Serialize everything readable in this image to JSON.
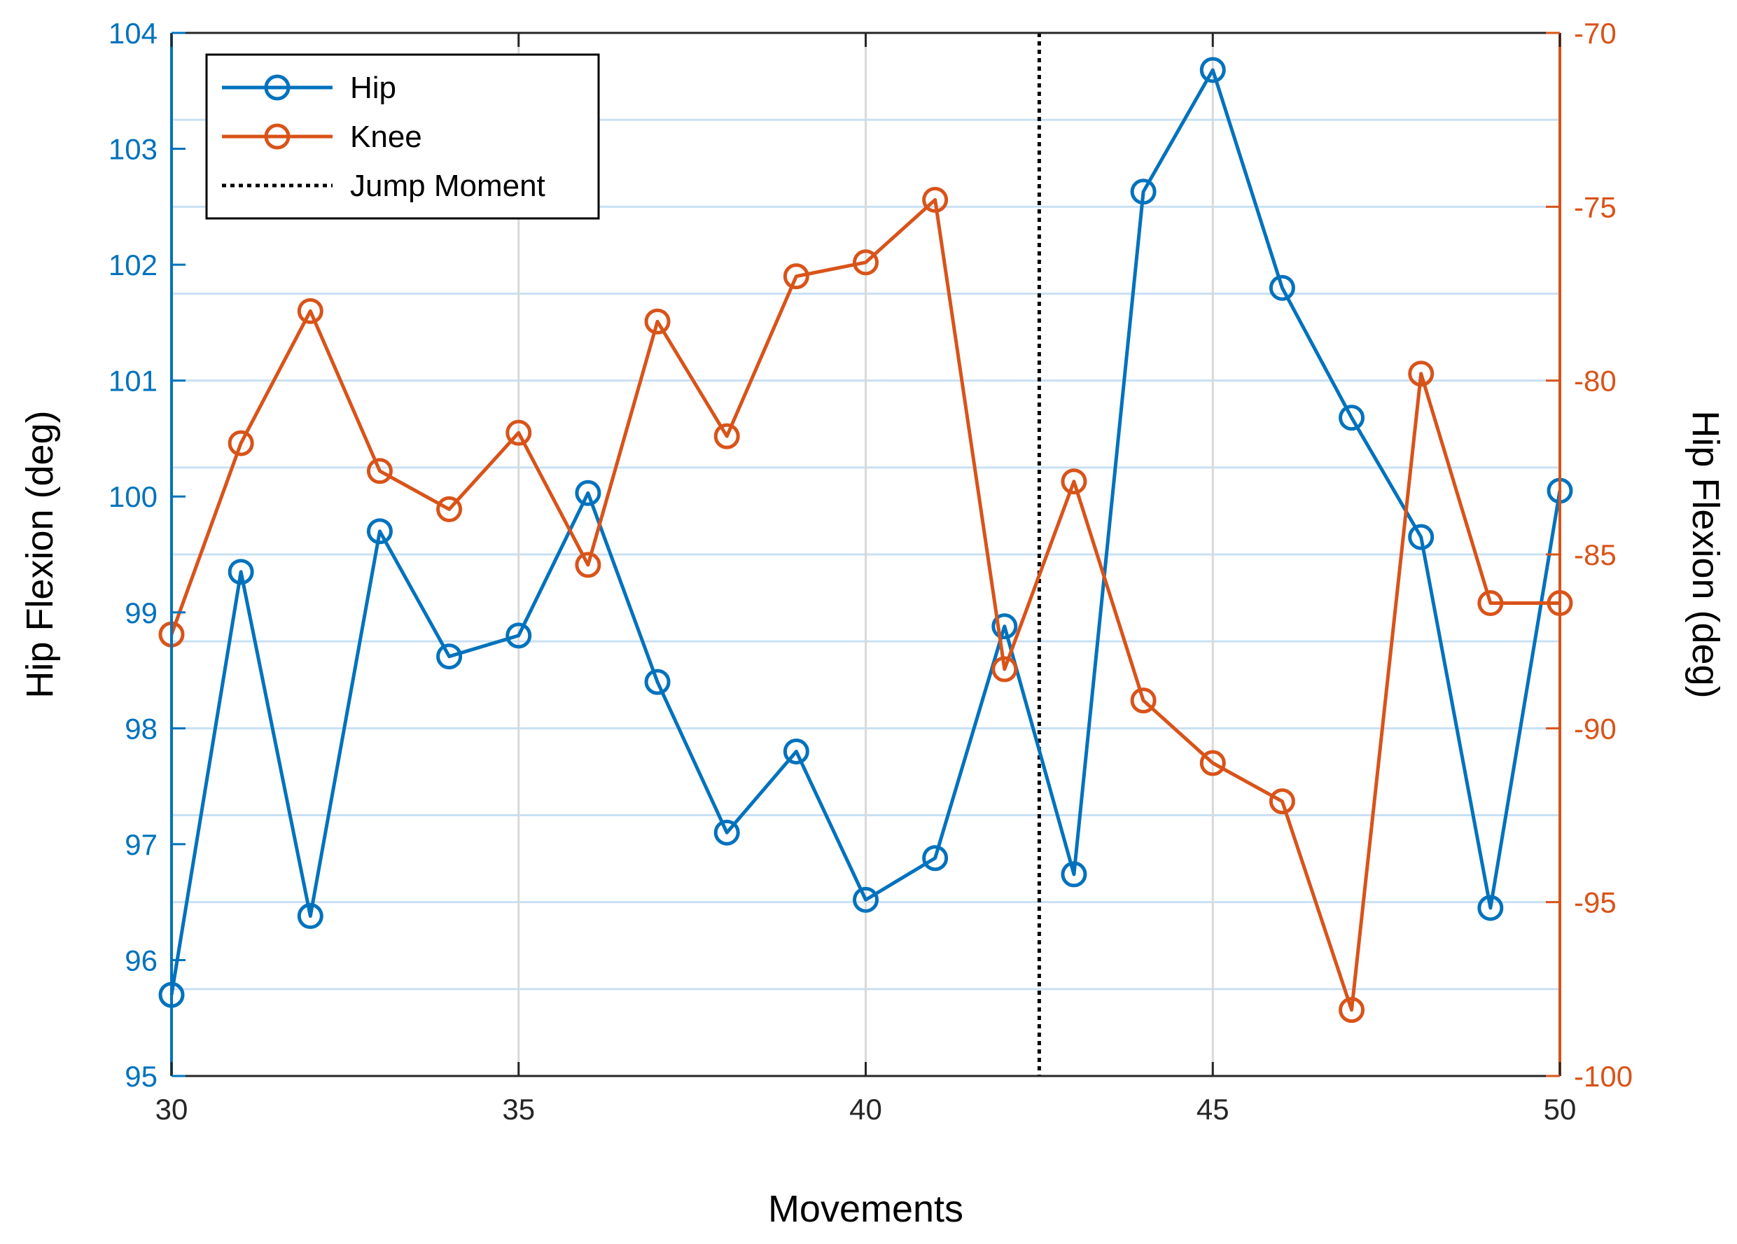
{
  "colors": {
    "left_axis": "#0072BD",
    "right_axis": "#D95319",
    "hip": "#0072BD",
    "knee": "#D95319",
    "jump": "#000000",
    "grid_major": "#d9d9d9",
    "grid_minor": "#c9e0f3"
  },
  "chart_data": {
    "type": "line",
    "title": "",
    "xlabel": "Movements",
    "ylabel_left": "Hip Flexion (deg)",
    "ylabel_right": "Hip Flexion (deg)",
    "xlim": [
      30,
      50
    ],
    "ylim_left": [
      95,
      104
    ],
    "ylim_right": [
      -100,
      -70
    ],
    "x_ticks": [
      30,
      35,
      40,
      45,
      50
    ],
    "y_ticks_left": [
      95,
      96,
      97,
      98,
      99,
      100,
      101,
      102,
      103,
      104
    ],
    "y_ticks_right": [
      -100,
      -95,
      -90,
      -85,
      -80,
      -75,
      -70
    ],
    "grid": true,
    "legend_position": "top-left",
    "x": [
      30,
      31,
      32,
      33,
      34,
      35,
      36,
      37,
      38,
      39,
      40,
      41,
      42,
      43,
      44,
      45,
      46,
      47,
      48,
      49,
      50
    ],
    "series": [
      {
        "name": "Hip",
        "axis": "left",
        "marker": "circle",
        "values": [
          95.7,
          99.35,
          96.38,
          99.7,
          98.62,
          98.8,
          100.03,
          98.4,
          97.1,
          97.8,
          96.52,
          96.88,
          98.88,
          96.74,
          102.63,
          103.68,
          101.8,
          100.68,
          99.65,
          96.45,
          100.05
        ]
      },
      {
        "name": "Knee",
        "axis": "right",
        "marker": "circle",
        "values": [
          -87.3,
          -81.8,
          -78.0,
          -82.6,
          -83.7,
          -81.5,
          -85.3,
          -78.3,
          -81.6,
          -77.0,
          -76.6,
          -74.8,
          -88.3,
          -82.9,
          -89.2,
          -91.0,
          -92.1,
          -98.1,
          -79.8,
          -86.4,
          -86.4
        ]
      }
    ],
    "vertical_lines": [
      {
        "name": "Jump Moment",
        "x": 42.5,
        "style": "dotted"
      }
    ]
  }
}
